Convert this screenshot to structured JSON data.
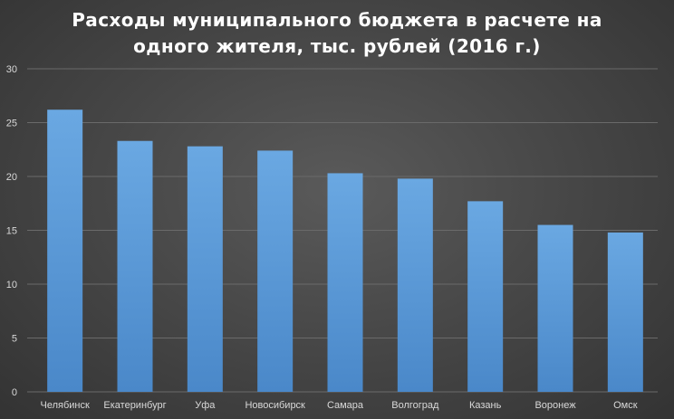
{
  "chart_data": {
    "type": "bar",
    "title": "Расходы муниципального бюджета в расчете на одного жителя, тыс. рублей (2016 г.)",
    "categories": [
      "Челябинск",
      "Екатеринбург",
      "Уфа",
      "Новосибирск",
      "Самара",
      "Волгоград",
      "Казань",
      "Воронеж",
      "Омск"
    ],
    "values": [
      26.2,
      23.3,
      22.8,
      22.4,
      20.3,
      19.8,
      17.7,
      15.5,
      14.8
    ],
    "ylim": [
      0,
      30
    ],
    "yticks": [
      "0",
      "5",
      "10",
      "15",
      "20",
      "25",
      "30"
    ],
    "grid": true,
    "bar_color": "#5b9bd5"
  }
}
